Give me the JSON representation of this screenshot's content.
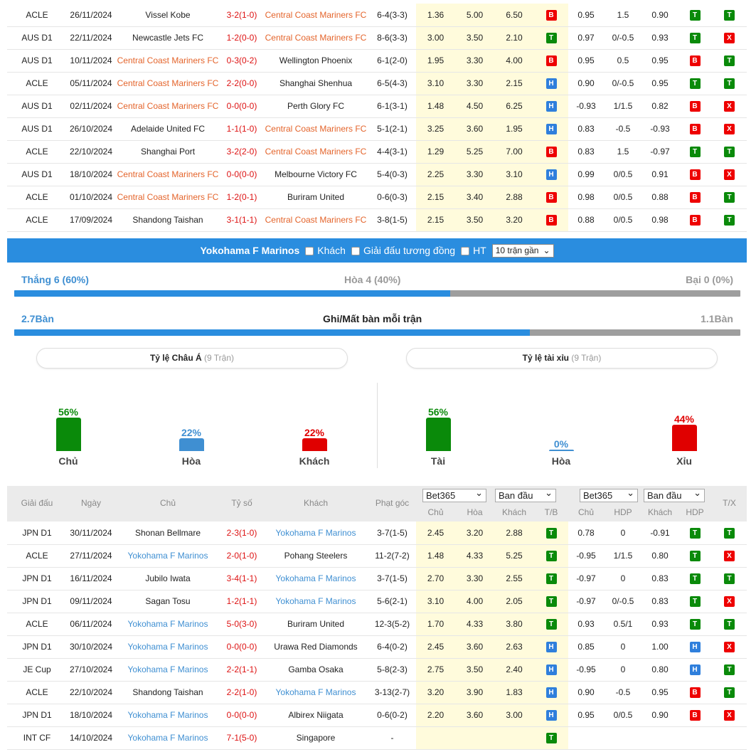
{
  "top_rows": [
    {
      "league": "ACLE",
      "date": "26/11/2024",
      "home": "Vissel Kobe",
      "home_hl": false,
      "score": "3-2(1-0)",
      "away": "Central Coast Mariners FC",
      "away_hl": true,
      "corner": "6-4(3-3)",
      "o1": "1.36",
      "o2": "5.00",
      "o3": "6.50",
      "r1": "B",
      "ah1": "0.95",
      "ah2": "1.5",
      "ah3": "0.90",
      "r2": "T",
      "r3": "T"
    },
    {
      "league": "AUS D1",
      "date": "22/11/2024",
      "home": "Newcastle Jets FC",
      "home_hl": false,
      "score": "1-2(0-0)",
      "away": "Central Coast Mariners FC",
      "away_hl": true,
      "corner": "8-6(3-3)",
      "o1": "3.00",
      "o2": "3.50",
      "o3": "2.10",
      "r1": "T",
      "ah1": "0.97",
      "ah2": "0/-0.5",
      "ah3": "0.93",
      "r2": "T",
      "r3": "X"
    },
    {
      "league": "AUS D1",
      "date": "10/11/2024",
      "home": "Central Coast Mariners FC",
      "home_hl": true,
      "score": "0-3(0-2)",
      "away": "Wellington Phoenix",
      "away_hl": false,
      "corner": "6-1(2-0)",
      "o1": "1.95",
      "o2": "3.30",
      "o3": "4.00",
      "r1": "B",
      "ah1": "0.95",
      "ah2": "0.5",
      "ah3": "0.95",
      "r2": "B",
      "r3": "T"
    },
    {
      "league": "ACLE",
      "date": "05/11/2024",
      "home": "Central Coast Mariners FC",
      "home_hl": true,
      "score": "2-2(0-0)",
      "away": "Shanghai Shenhua",
      "away_hl": false,
      "corner": "6-5(4-3)",
      "o1": "3.10",
      "o2": "3.30",
      "o3": "2.15",
      "r1": "H",
      "ah1": "0.90",
      "ah2": "0/-0.5",
      "ah3": "0.95",
      "r2": "T",
      "r3": "T"
    },
    {
      "league": "AUS D1",
      "date": "02/11/2024",
      "home": "Central Coast Mariners FC",
      "home_hl": true,
      "score": "0-0(0-0)",
      "away": "Perth Glory FC",
      "away_hl": false,
      "corner": "6-1(3-1)",
      "o1": "1.48",
      "o2": "4.50",
      "o3": "6.25",
      "r1": "H",
      "ah1": "-0.93",
      "ah2": "1/1.5",
      "ah3": "0.82",
      "r2": "B",
      "r3": "X"
    },
    {
      "league": "AUS D1",
      "date": "26/10/2024",
      "home": "Adelaide United FC",
      "home_hl": false,
      "score": "1-1(1-0)",
      "away": "Central Coast Mariners FC",
      "away_hl": true,
      "corner": "5-1(2-1)",
      "o1": "3.25",
      "o2": "3.60",
      "o3": "1.95",
      "r1": "H",
      "ah1": "0.83",
      "ah2": "-0.5",
      "ah3": "-0.93",
      "r2": "B",
      "r3": "X"
    },
    {
      "league": "ACLE",
      "date": "22/10/2024",
      "home": "Shanghai Port",
      "home_hl": false,
      "score": "3-2(2-0)",
      "away": "Central Coast Mariners FC",
      "away_hl": true,
      "corner": "4-4(3-1)",
      "o1": "1.29",
      "o2": "5.25",
      "o3": "7.00",
      "r1": "B",
      "ah1": "0.83",
      "ah2": "1.5",
      "ah3": "-0.97",
      "r2": "T",
      "r3": "T"
    },
    {
      "league": "AUS D1",
      "date": "18/10/2024",
      "home": "Central Coast Mariners FC",
      "home_hl": true,
      "score": "0-0(0-0)",
      "away": "Melbourne Victory FC",
      "away_hl": false,
      "corner": "5-4(0-3)",
      "o1": "2.25",
      "o2": "3.30",
      "o3": "3.10",
      "r1": "H",
      "ah1": "0.99",
      "ah2": "0/0.5",
      "ah3": "0.91",
      "r2": "B",
      "r3": "X"
    },
    {
      "league": "ACLE",
      "date": "01/10/2024",
      "home": "Central Coast Mariners FC",
      "home_hl": true,
      "score": "1-2(0-1)",
      "away": "Buriram United",
      "away_hl": false,
      "corner": "0-6(0-3)",
      "o1": "2.15",
      "o2": "3.40",
      "o3": "2.88",
      "r1": "B",
      "ah1": "0.98",
      "ah2": "0/0.5",
      "ah3": "0.88",
      "r2": "B",
      "r3": "T"
    },
    {
      "league": "ACLE",
      "date": "17/09/2024",
      "home": "Shandong Taishan",
      "home_hl": false,
      "score": "3-1(1-1)",
      "away": "Central Coast Mariners FC",
      "away_hl": true,
      "corner": "3-8(1-5)",
      "o1": "2.15",
      "o2": "3.50",
      "o3": "3.20",
      "r1": "B",
      "ah1": "0.88",
      "ah2": "0/0.5",
      "ah3": "0.98",
      "r2": "B",
      "r3": "T"
    }
  ],
  "filter": {
    "team": "Yokohama F Marinos",
    "opt_away": "Khách",
    "opt_same_league": "Giải đấu tương đồng",
    "opt_ht": "HT",
    "select": "10 trận gần"
  },
  "record": {
    "win": "Thắng 6 (60%)",
    "draw": "Hòa 4 (40%)",
    "loss": "Bại 0 (0%)",
    "win_ratio": 0.6
  },
  "goals": {
    "scored": "2.7Bàn",
    "title": "Ghi/Mất bàn mỗi trận",
    "conceded": "1.1Bàn",
    "scored_ratio": 0.71
  },
  "asian": {
    "title": "Tỷ lệ Châu Á",
    "count": "(9 Trận)",
    "items": [
      {
        "label": "Chủ",
        "pct": "56%",
        "value": 56,
        "color": "#0a8a0a"
      },
      {
        "label": "Hòa",
        "pct": "22%",
        "value": 22,
        "color": "#3f8fd2"
      },
      {
        "label": "Khách",
        "pct": "22%",
        "value": 22,
        "color": "#e00000"
      }
    ]
  },
  "ou": {
    "title": "Tỷ lệ tài xỉu",
    "count": "(9 Trận)",
    "items": [
      {
        "label": "Tài",
        "pct": "56%",
        "value": 56,
        "color": "#0a8a0a"
      },
      {
        "label": "Hòa",
        "pct": "0%",
        "value": 0,
        "color": "#3f8fd2"
      },
      {
        "label": "Xỉu",
        "pct": "44%",
        "value": 44,
        "color": "#e00000"
      }
    ]
  },
  "header": {
    "league": "Giải đấu",
    "date": "Ngày",
    "home": "Chủ",
    "score": "Tỷ số",
    "away": "Khách",
    "corner": "Phạt góc",
    "sel1": "Bet365",
    "sel2": "Ban đầu",
    "sel3": "Bet365",
    "sel4": "Ban đầu",
    "c_home": "Chủ",
    "c_draw": "Hòa",
    "c_away": "Khách",
    "c_tb": "T/B",
    "c_home2": "Chủ",
    "c_hdp": "HDP",
    "c_away2": "Khách",
    "c_hdp2": "HDP",
    "c_tx": "T/X"
  },
  "bottom_rows": [
    {
      "league": "JPN D1",
      "date": "30/11/2024",
      "home": "Shonan Bellmare",
      "home_hl": false,
      "score": "2-3(1-0)",
      "away": "Yokohama F Marinos",
      "away_hl": true,
      "corner": "3-7(1-5)",
      "o1": "2.45",
      "o2": "3.20",
      "o3": "2.88",
      "r1": "T",
      "ah1": "0.78",
      "ah2": "0",
      "ah3": "-0.91",
      "r2": "T",
      "r3": "T"
    },
    {
      "league": "ACLE",
      "date": "27/11/2024",
      "home": "Yokohama F Marinos",
      "home_hl": true,
      "score": "2-0(1-0)",
      "away": "Pohang Steelers",
      "away_hl": false,
      "corner": "11-2(7-2)",
      "o1": "1.48",
      "o2": "4.33",
      "o3": "5.25",
      "r1": "T",
      "ah1": "-0.95",
      "ah2": "1/1.5",
      "ah3": "0.80",
      "r2": "T",
      "r3": "X"
    },
    {
      "league": "JPN D1",
      "date": "16/11/2024",
      "home": "Jubilo Iwata",
      "home_hl": false,
      "score": "3-4(1-1)",
      "away": "Yokohama F Marinos",
      "away_hl": true,
      "corner": "3-7(1-5)",
      "o1": "2.70",
      "o2": "3.30",
      "o3": "2.55",
      "r1": "T",
      "ah1": "-0.97",
      "ah2": "0",
      "ah3": "0.83",
      "r2": "T",
      "r3": "T"
    },
    {
      "league": "JPN D1",
      "date": "09/11/2024",
      "home": "Sagan Tosu",
      "home_hl": false,
      "score": "1-2(1-1)",
      "away": "Yokohama F Marinos",
      "away_hl": true,
      "corner": "5-6(2-1)",
      "o1": "3.10",
      "o2": "4.00",
      "o3": "2.05",
      "r1": "T",
      "ah1": "-0.97",
      "ah2": "0/-0.5",
      "ah3": "0.83",
      "r2": "T",
      "r3": "X"
    },
    {
      "league": "ACLE",
      "date": "06/11/2024",
      "home": "Yokohama F Marinos",
      "home_hl": true,
      "score": "5-0(3-0)",
      "away": "Buriram United",
      "away_hl": false,
      "corner": "12-3(5-2)",
      "o1": "1.70",
      "o2": "4.33",
      "o3": "3.80",
      "r1": "T",
      "ah1": "0.93",
      "ah2": "0.5/1",
      "ah3": "0.93",
      "r2": "T",
      "r3": "T"
    },
    {
      "league": "JPN D1",
      "date": "30/10/2024",
      "home": "Yokohama F Marinos",
      "home_hl": true,
      "score": "0-0(0-0)",
      "away": "Urawa Red Diamonds",
      "away_hl": false,
      "corner": "6-4(0-2)",
      "o1": "2.45",
      "o2": "3.60",
      "o3": "2.63",
      "r1": "H",
      "ah1": "0.85",
      "ah2": "0",
      "ah3": "1.00",
      "r2": "H",
      "r3": "X"
    },
    {
      "league": "JE Cup",
      "date": "27/10/2024",
      "home": "Yokohama F Marinos",
      "home_hl": true,
      "score": "2-2(1-1)",
      "away": "Gamba Osaka",
      "away_hl": false,
      "corner": "5-8(2-3)",
      "o1": "2.75",
      "o2": "3.50",
      "o3": "2.40",
      "r1": "H",
      "ah1": "-0.95",
      "ah2": "0",
      "ah3": "0.80",
      "r2": "H",
      "r3": "T"
    },
    {
      "league": "ACLE",
      "date": "22/10/2024",
      "home": "Shandong Taishan",
      "home_hl": false,
      "score": "2-2(1-0)",
      "away": "Yokohama F Marinos",
      "away_hl": true,
      "corner": "3-13(2-7)",
      "o1": "3.20",
      "o2": "3.90",
      "o3": "1.83",
      "r1": "H",
      "ah1": "0.90",
      "ah2": "-0.5",
      "ah3": "0.95",
      "r2": "B",
      "r3": "T"
    },
    {
      "league": "JPN D1",
      "date": "18/10/2024",
      "home": "Yokohama F Marinos",
      "home_hl": true,
      "score": "0-0(0-0)",
      "away": "Albirex Niigata",
      "away_hl": false,
      "corner": "0-6(0-2)",
      "o1": "2.20",
      "o2": "3.60",
      "o3": "3.00",
      "r1": "H",
      "ah1": "0.95",
      "ah2": "0/0.5",
      "ah3": "0.90",
      "r2": "B",
      "r3": "X"
    },
    {
      "league": "INT CF",
      "date": "14/10/2024",
      "home": "Yokohama F Marinos",
      "home_hl": true,
      "score": "7-1(5-0)",
      "away": "Singapore",
      "away_hl": false,
      "corner": "-",
      "o1": "",
      "o2": "",
      "o3": "",
      "r1": "T",
      "ah1": "",
      "ah2": "",
      "ah3": "",
      "r2": "",
      "r3": ""
    }
  ]
}
